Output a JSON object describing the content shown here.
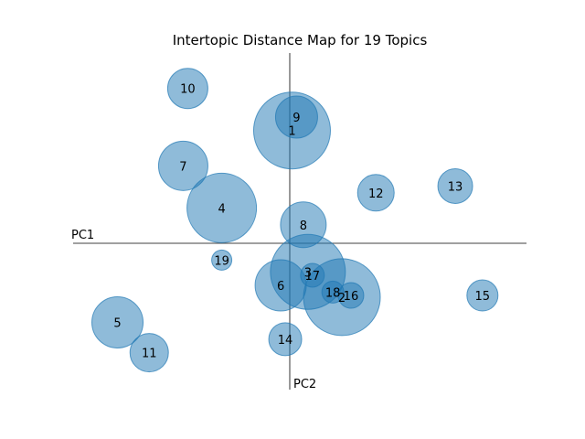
{
  "chart_data": {
    "type": "scatter",
    "title": "Intertopic Distance Map for 19 Topics",
    "xlabel": "PC1",
    "ylabel": "PC2",
    "xlim": [
      -1.0,
      1.0
    ],
    "ylim": [
      -1.0,
      1.0
    ],
    "grid": false,
    "legend": "none",
    "bubble_color": "#1f77b4",
    "bubble_opacity": 0.5,
    "points": [
      {
        "label": "1",
        "x": 0.01,
        "y": 0.67,
        "size_r": 42
      },
      {
        "label": "2",
        "x": 0.23,
        "y": -0.32,
        "size_r": 42
      },
      {
        "label": "3",
        "x": 0.08,
        "y": -0.17,
        "size_r": 41
      },
      {
        "label": "4",
        "x": -0.3,
        "y": 0.21,
        "size_r": 38
      },
      {
        "label": "5",
        "x": -0.76,
        "y": -0.47,
        "size_r": 28
      },
      {
        "label": "6",
        "x": -0.04,
        "y": -0.25,
        "size_r": 28
      },
      {
        "label": "7",
        "x": -0.47,
        "y": 0.46,
        "size_r": 27
      },
      {
        "label": "8",
        "x": 0.06,
        "y": 0.11,
        "size_r": 25
      },
      {
        "label": "9",
        "x": 0.03,
        "y": 0.75,
        "size_r": 23
      },
      {
        "label": "10",
        "x": -0.45,
        "y": 0.92,
        "size_r": 22
      },
      {
        "label": "11",
        "x": -0.62,
        "y": -0.65,
        "size_r": 21
      },
      {
        "label": "12",
        "x": 0.38,
        "y": 0.3,
        "size_r": 20
      },
      {
        "label": "13",
        "x": 0.73,
        "y": 0.34,
        "size_r": 19
      },
      {
        "label": "14",
        "x": -0.02,
        "y": -0.57,
        "size_r": 18
      },
      {
        "label": "15",
        "x": 0.85,
        "y": -0.31,
        "size_r": 17
      },
      {
        "label": "16",
        "x": 0.27,
        "y": -0.31,
        "size_r": 14
      },
      {
        "label": "17",
        "x": 0.1,
        "y": -0.19,
        "size_r": 13
      },
      {
        "label": "18",
        "x": 0.19,
        "y": -0.29,
        "size_r": 12
      },
      {
        "label": "19",
        "x": -0.3,
        "y": -0.1,
        "size_r": 11
      }
    ]
  }
}
